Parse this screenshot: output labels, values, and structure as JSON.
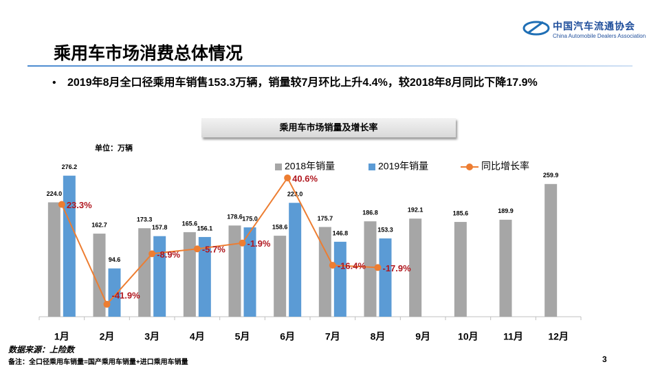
{
  "header": {
    "logo_cn": "中国汽车流通协会",
    "logo_en": "China Automobile Dealers Association",
    "title": "乘用车市场消费总体情况"
  },
  "bullet": "2019年8月全口径乘用车销售153.3万辆，销量较7月环比上升4.4%，较2018年8月同比下降17.9%",
  "footer": {
    "source": "数据来源：上险数",
    "note": "备注：全口径乘用车销量=国产乘用车销量+进口乘用车销量",
    "page": "3"
  },
  "chart_data": {
    "type": "bar",
    "title": "乘用车市场销量及增长率",
    "unit": "单位：万辆",
    "categories": [
      "1月",
      "2月",
      "3月",
      "4月",
      "5月",
      "6月",
      "7月",
      "8月",
      "9月",
      "10月",
      "11月",
      "12月"
    ],
    "ylim": [
      0,
      300
    ],
    "y2lim": [
      -50,
      50
    ],
    "series": [
      {
        "name": "2018年销量",
        "color": "#a6a6a6",
        "values": [
          224.0,
          162.7,
          173.3,
          165.6,
          178.6,
          158.6,
          175.7,
          186.8,
          192.1,
          185.6,
          189.9,
          259.9
        ],
        "value_labels": [
          "224.0",
          "162.7",
          "173.3",
          "165.6",
          "178.6",
          "158.6",
          "175.7",
          "186.8",
          "192.1",
          "185.6",
          "189.9",
          "259.9"
        ]
      },
      {
        "name": "2019年销量",
        "color": "#5b9bd5",
        "values": [
          276.2,
          94.6,
          157.8,
          156.1,
          175.0,
          223.0,
          146.8,
          153.3,
          null,
          null,
          null,
          null
        ],
        "value_labels": [
          "276.2",
          "94.6",
          "157.8",
          "156.1",
          "175.0",
          "223.0",
          "146.8",
          "153.3",
          null,
          null,
          null,
          null
        ]
      },
      {
        "name": "同比增长率",
        "type": "line",
        "axis": "y2",
        "color": "#ed7d31",
        "label_color": "#b0171f",
        "values": [
          23.3,
          -41.9,
          -8.9,
          -5.7,
          -1.9,
          40.6,
          -16.4,
          -17.9,
          null,
          null,
          null,
          null
        ],
        "value_labels": [
          "23.3%",
          "-41.9%",
          "-8.9%",
          "-5.7%",
          "-1.9%",
          "40.6%",
          "-16.4%",
          "-17.9%",
          null,
          null,
          null,
          null
        ]
      }
    ]
  }
}
